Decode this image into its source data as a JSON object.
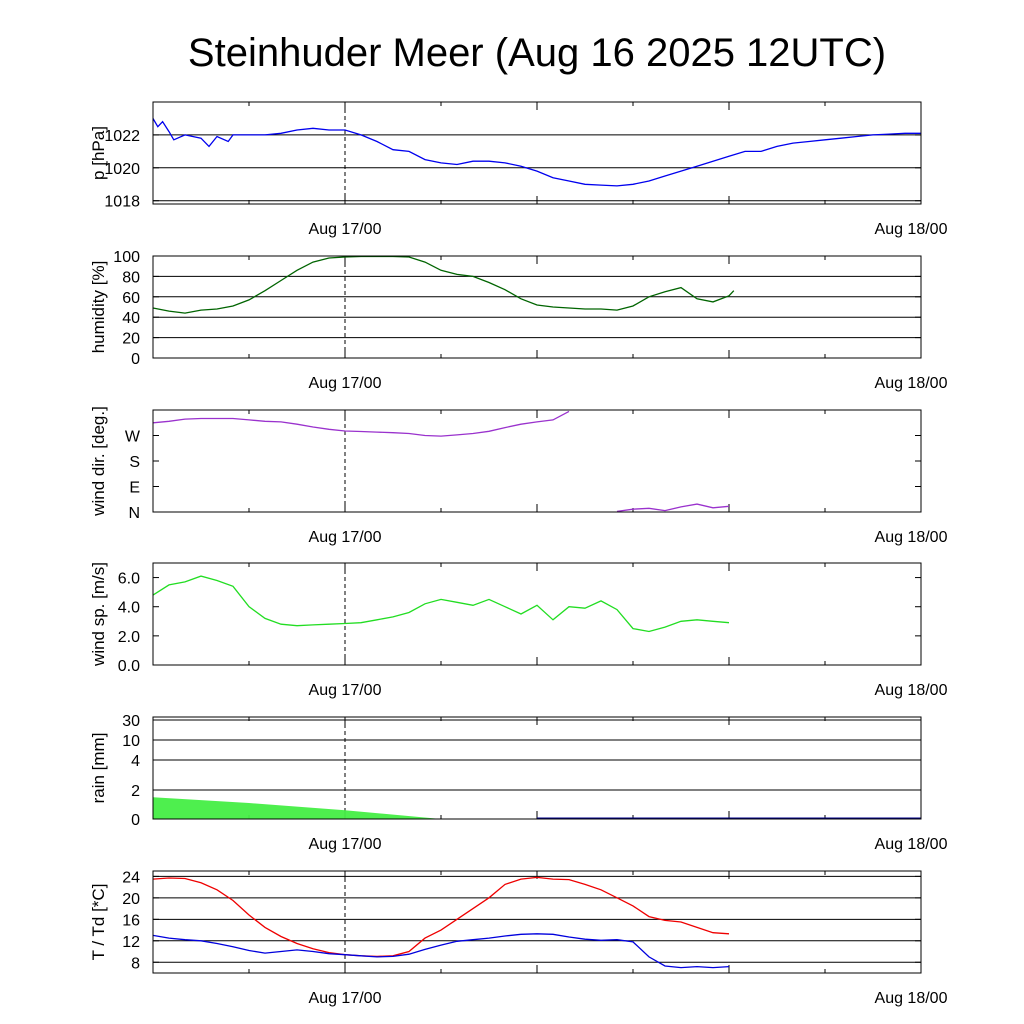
{
  "title": "Steinhuder Meer (Aug 16 2025 12UTC)",
  "x_tick_labels": [
    "Aug 17/00",
    "Aug 18/00"
  ],
  "chart_data": [
    {
      "id": "pressure",
      "type": "line",
      "ylabel": "p [hPa]",
      "ylim": [
        1017.8,
        1024.0
      ],
      "yticks": [
        1018,
        1020,
        1022
      ],
      "ytick_labels": [
        "1018",
        "1020",
        "1022"
      ],
      "gridlines": [
        1018,
        1020,
        1022
      ],
      "x_hours": [
        12,
        12.3,
        12.6,
        13,
        13.3,
        14,
        15,
        15.5,
        16,
        16.7,
        17,
        18,
        19,
        20,
        21,
        22,
        23,
        24,
        25,
        26,
        27,
        28,
        29,
        30,
        31,
        32,
        33,
        34,
        35,
        36,
        37,
        38,
        39,
        40,
        41,
        42,
        43,
        44,
        45,
        46,
        47,
        48,
        49,
        50,
        51,
        52,
        53,
        54,
        55,
        56,
        57,
        58,
        59,
        60
      ],
      "series": [
        {
          "name": "pressure",
          "color": "#0000ee",
          "values": [
            1023.0,
            1022.5,
            1022.8,
            1022.2,
            1021.7,
            1022.0,
            1021.8,
            1021.3,
            1021.9,
            1021.6,
            1022.0,
            1022.0,
            1022.0,
            1022.1,
            1022.3,
            1022.4,
            1022.3,
            1022.3,
            1022.0,
            1021.6,
            1021.1,
            1021.0,
            1020.5,
            1020.3,
            1020.2,
            1020.4,
            1020.4,
            1020.3,
            1020.1,
            1019.8,
            1019.4,
            1019.2,
            1019.0,
            1018.95,
            1018.9,
            1019.0,
            1019.2,
            1019.5,
            1019.8,
            1020.1,
            1020.4,
            1020.7,
            1021.0,
            1021.0,
            1021.3,
            1021.5,
            1021.6,
            1021.7,
            1021.8,
            1021.9,
            1022.0,
            1022.05,
            1022.1,
            1022.1
          ]
        }
      ]
    },
    {
      "id": "humidity",
      "type": "line",
      "ylabel": "humidity [%]",
      "ylim": [
        0,
        100
      ],
      "yticks": [
        0,
        20,
        40,
        60,
        80,
        100
      ],
      "ytick_labels": [
        "0",
        "20",
        "40",
        "60",
        "80",
        "100"
      ],
      "gridlines": [
        20,
        40,
        60,
        80
      ],
      "x_hours": [
        12,
        13,
        14,
        15,
        16,
        17,
        18,
        19,
        20,
        21,
        22,
        23,
        24,
        25,
        26,
        27,
        28,
        29,
        30,
        31,
        32,
        33,
        34,
        35,
        36,
        37,
        38,
        39,
        40,
        41,
        42,
        43,
        44,
        45,
        46,
        47,
        48,
        48.3
      ],
      "series": [
        {
          "name": "humidity",
          "color": "#006400",
          "values": [
            49,
            46,
            44,
            47,
            48,
            51,
            57,
            66,
            76,
            86,
            94,
            98,
            99,
            99.5,
            99.5,
            99.5,
            99,
            94,
            86,
            82,
            80,
            74,
            67,
            58,
            52,
            50,
            49,
            48,
            48,
            47,
            51,
            60,
            65,
            69,
            58,
            55,
            61,
            66
          ]
        }
      ]
    },
    {
      "id": "wind_direction",
      "type": "line",
      "ylabel": "wind dir. [deg.]",
      "ylim": [
        0,
        360
      ],
      "yticks": [
        0,
        90,
        180,
        270
      ],
      "ytick_labels": [
        "N",
        "E",
        "S",
        "W"
      ],
      "gridlines": [],
      "x_hours": [
        12,
        13,
        14,
        15,
        16,
        17,
        18,
        19,
        20,
        21,
        22,
        23,
        24,
        25,
        26,
        27,
        28,
        29,
        30,
        31,
        32,
        33,
        34,
        35,
        36,
        37,
        38,
        39,
        40,
        41,
        42,
        43,
        44,
        45,
        46,
        47,
        48
      ],
      "series": [
        {
          "name": "wind direction",
          "color": "#9a32cd",
          "values": [
            315,
            320,
            328,
            330,
            330,
            330,
            325,
            320,
            318,
            310,
            300,
            292,
            286,
            284,
            282,
            280,
            277,
            270,
            268,
            272,
            277,
            285,
            298,
            310,
            318,
            325,
            355,
            null,
            null,
            2,
            10,
            13,
            5,
            18,
            28,
            15,
            20
          ]
        }
      ]
    },
    {
      "id": "wind_speed",
      "type": "line",
      "ylabel": "wind sp. [m/s]",
      "ylim": [
        0.0,
        7.0
      ],
      "yticks": [
        0.0,
        2.0,
        4.0,
        6.0
      ],
      "ytick_labels": [
        "0.0",
        "2.0",
        "4.0",
        "6.0"
      ],
      "gridlines": [],
      "x_hours": [
        12,
        13,
        14,
        15,
        16,
        17,
        18,
        19,
        20,
        21,
        22,
        23,
        24,
        25,
        26,
        27,
        28,
        29,
        30,
        31,
        32,
        33,
        34,
        35,
        36,
        37,
        38,
        39,
        40,
        41,
        42,
        43,
        44,
        45,
        46,
        47,
        48
      ],
      "series": [
        {
          "name": "wind speed",
          "color": "#22dd22",
          "values": [
            4.8,
            5.5,
            5.7,
            6.1,
            5.8,
            5.4,
            4.0,
            3.2,
            2.8,
            2.7,
            2.75,
            2.8,
            2.85,
            2.9,
            3.1,
            3.3,
            3.6,
            4.2,
            4.5,
            4.3,
            4.1,
            4.5,
            4.0,
            3.5,
            4.1,
            3.1,
            4.0,
            3.9,
            4.4,
            3.8,
            2.5,
            2.3,
            2.6,
            3.0,
            3.1,
            3.0,
            2.9
          ]
        }
      ]
    },
    {
      "id": "rain",
      "type": "area",
      "ylabel": "rain [mm]",
      "yticks": [
        0,
        2,
        4,
        10,
        30
      ],
      "ytick_labels": [
        "0",
        "2",
        "4",
        "10",
        "30"
      ],
      "gridlines": [
        2,
        4,
        10,
        30
      ],
      "x_hours": [
        12,
        18,
        24,
        30,
        36,
        42,
        48
      ],
      "series": [
        {
          "name": "rain",
          "color": "#44ee44",
          "values": [
            1.5,
            1.1,
            0.6,
            0.0,
            0.0,
            0.0,
            0.0
          ]
        }
      ]
    },
    {
      "id": "temperature",
      "type": "line",
      "ylabel": "T / Td [*C]",
      "ylim": [
        6,
        25
      ],
      "yticks": [
        8,
        12,
        16,
        20,
        24
      ],
      "ytick_labels": [
        "8",
        "12",
        "16",
        "20",
        "24"
      ],
      "gridlines": [
        8,
        12,
        16,
        20,
        24
      ],
      "x_hours": [
        12,
        13,
        14,
        15,
        16,
        17,
        18,
        19,
        20,
        21,
        22,
        23,
        24,
        25,
        26,
        27,
        28,
        29,
        30,
        31,
        32,
        33,
        34,
        35,
        36,
        37,
        38,
        39,
        40,
        41,
        42,
        43,
        44,
        45,
        46,
        47,
        48
      ],
      "series": [
        {
          "name": "T",
          "color": "#ee0000",
          "values": [
            23.5,
            23.7,
            23.6,
            22.8,
            21.5,
            19.5,
            16.8,
            14.5,
            12.8,
            11.5,
            10.5,
            9.8,
            9.4,
            9.2,
            9.1,
            9.2,
            10.0,
            12.5,
            14.0,
            16.0,
            18.0,
            20.0,
            22.5,
            23.5,
            23.8,
            23.5,
            23.4,
            22.5,
            21.5,
            20.0,
            18.5,
            16.5,
            15.8,
            15.5,
            14.5,
            13.5,
            13.3
          ]
        },
        {
          "name": "Td",
          "color": "#0000dd",
          "values": [
            13.0,
            12.5,
            12.2,
            12.0,
            11.5,
            10.9,
            10.2,
            9.7,
            10.0,
            10.3,
            10.0,
            9.6,
            9.4,
            9.2,
            9.0,
            9.1,
            9.5,
            10.4,
            11.2,
            11.9,
            12.2,
            12.5,
            12.9,
            13.2,
            13.3,
            13.2,
            12.7,
            12.3,
            12.1,
            12.2,
            11.8,
            9.0,
            7.3,
            7.0,
            7.2,
            7.0,
            7.2
          ]
        }
      ]
    }
  ]
}
